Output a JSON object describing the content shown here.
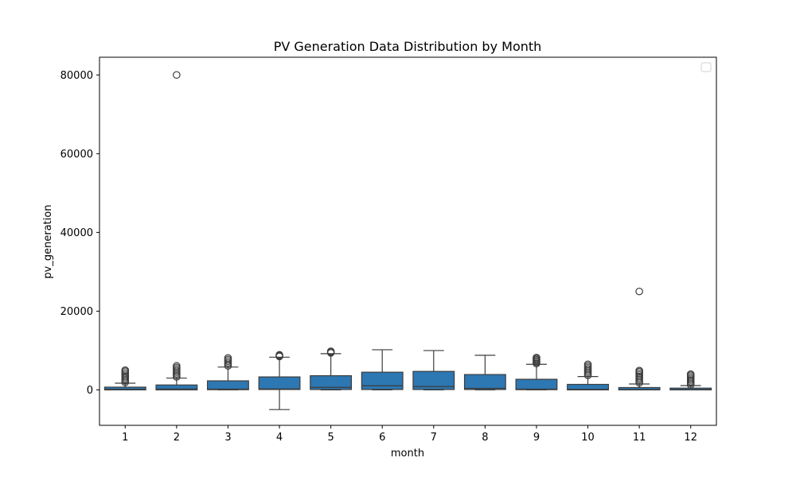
{
  "chart_data": {
    "type": "boxplot",
    "title": "PV Generation Data Distribution by Month",
    "xlabel": "month",
    "ylabel": "pv_generation",
    "ylim": [
      -9000,
      84500
    ],
    "yticks": [
      0,
      20000,
      40000,
      60000,
      80000
    ],
    "grid": false,
    "legend": {
      "placement": "top-right",
      "entries": []
    },
    "box_color": "#2d77b2",
    "line_color": "#3d3d3d",
    "categories": [
      "1",
      "2",
      "3",
      "4",
      "5",
      "6",
      "7",
      "8",
      "9",
      "10",
      "11",
      "12"
    ],
    "boxes": [
      {
        "month": "1",
        "whisker_low": 0,
        "q1": 0,
        "median": 150,
        "q3": 700,
        "whisker_high": 1700,
        "outliers": [
          1900,
          2300,
          2700,
          3100,
          3500,
          3900,
          4300,
          4700,
          5000
        ]
      },
      {
        "month": "2",
        "whisker_low": 0,
        "q1": 0,
        "median": 250,
        "q3": 1250,
        "whisker_high": 3000,
        "outliers": [
          3300,
          3700,
          4100,
          4500,
          4900,
          5300,
          5700,
          6100,
          80000
        ]
      },
      {
        "month": "3",
        "whisker_low": 0,
        "q1": 50,
        "median": 200,
        "q3": 2300,
        "whisker_high": 5800,
        "outliers": [
          6100,
          6500,
          6900,
          7300,
          7700,
          8100
        ]
      },
      {
        "month": "4",
        "whisker_low": -5000,
        "q1": 100,
        "median": 250,
        "q3": 3300,
        "whisker_high": 8300,
        "outliers": [
          8500,
          8700,
          8900
        ]
      },
      {
        "month": "5",
        "whisker_low": 0,
        "q1": 100,
        "median": 650,
        "q3": 3600,
        "whisker_high": 9200,
        "outliers": [
          9400,
          9600,
          9800
        ]
      },
      {
        "month": "6",
        "whisker_low": 0,
        "q1": 100,
        "median": 1050,
        "q3": 4500,
        "whisker_high": 10200,
        "outliers": []
      },
      {
        "month": "7",
        "whisker_low": 0,
        "q1": 100,
        "median": 850,
        "q3": 4700,
        "whisker_high": 10000,
        "outliers": []
      },
      {
        "month": "8",
        "whisker_low": 0,
        "q1": 100,
        "median": 400,
        "q3": 3900,
        "whisker_high": 8800,
        "outliers": []
      },
      {
        "month": "9",
        "whisker_low": 0,
        "q1": 50,
        "median": 200,
        "q3": 2700,
        "whisker_high": 6500,
        "outliers": [
          6700,
          7000,
          7300,
          7600,
          7900,
          8200
        ]
      },
      {
        "month": "10",
        "whisker_low": 0,
        "q1": 0,
        "median": 150,
        "q3": 1400,
        "whisker_high": 3400,
        "outliers": [
          3700,
          4100,
          4500,
          4900,
          5300,
          5700,
          6100,
          6500
        ]
      },
      {
        "month": "11",
        "whisker_low": 0,
        "q1": 0,
        "median": 100,
        "q3": 600,
        "whisker_high": 1500,
        "outliers": [
          1800,
          2200,
          2600,
          3000,
          3400,
          3800,
          4200,
          4600,
          4900,
          25000
        ]
      },
      {
        "month": "12",
        "whisker_low": 0,
        "q1": 0,
        "median": 100,
        "q3": 450,
        "whisker_high": 1100,
        "outliers": [
          1300,
          1700,
          2100,
          2500,
          2900,
          3300,
          3700,
          4000
        ]
      }
    ]
  }
}
